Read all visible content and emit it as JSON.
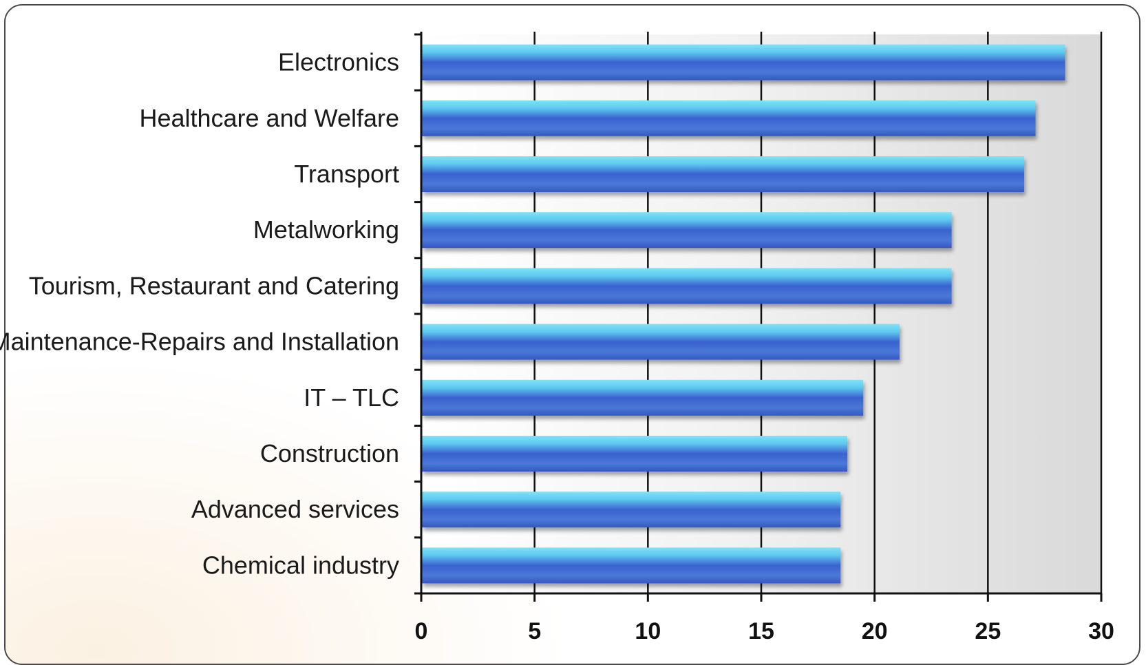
{
  "chart_data": {
    "type": "bar",
    "orientation": "horizontal",
    "title": "",
    "xlabel": "",
    "ylabel": "",
    "categories": [
      "Electronics",
      "Healthcare and Welfare",
      "Transport",
      "Metalworking",
      "Tourism, Restaurant and Catering",
      "Maintenance-Repairs and Installation",
      "IT – TLC",
      "Construction",
      "Advanced services",
      "Chemical industry"
    ],
    "values": [
      28.4,
      27.1,
      26.6,
      23.4,
      23.4,
      21.1,
      19.5,
      18.8,
      18.5,
      18.5
    ],
    "xlim": [
      0,
      30
    ],
    "xticks": [
      "0",
      "5",
      "10",
      "15",
      "20",
      "25",
      "30"
    ],
    "grid": true,
    "colors": {
      "bar_dark": "#2f52c4",
      "bar_light": "#6ad8f2",
      "plot_background": "#dcdcdc",
      "gridline": "#111111"
    }
  }
}
